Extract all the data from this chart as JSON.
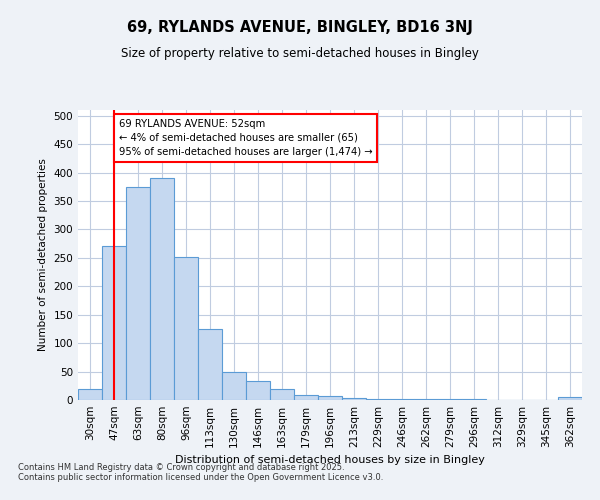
{
  "title": "69, RYLANDS AVENUE, BINGLEY, BD16 3NJ",
  "subtitle": "Size of property relative to semi-detached houses in Bingley",
  "xlabel": "Distribution of semi-detached houses by size in Bingley",
  "ylabel": "Number of semi-detached properties",
  "bins": [
    "30sqm",
    "47sqm",
    "63sqm",
    "80sqm",
    "96sqm",
    "113sqm",
    "130sqm",
    "146sqm",
    "163sqm",
    "179sqm",
    "196sqm",
    "213sqm",
    "229sqm",
    "246sqm",
    "262sqm",
    "279sqm",
    "296sqm",
    "312sqm",
    "329sqm",
    "345sqm",
    "362sqm"
  ],
  "bar_values": [
    20,
    270,
    375,
    390,
    252,
    125,
    50,
    33,
    20,
    9,
    7,
    4,
    2,
    2,
    1,
    1,
    1,
    0,
    0,
    0,
    5
  ],
  "bar_color": "#c5d8f0",
  "bar_edge_color": "#5b9bd5",
  "vline_x": 1,
  "vline_color": "red",
  "annotation_text": "69 RYLANDS AVENUE: 52sqm\n← 4% of semi-detached houses are smaller (65)\n95% of semi-detached houses are larger (1,474) →",
  "annotation_box_color": "white",
  "annotation_box_edge": "red",
  "footer": "Contains HM Land Registry data © Crown copyright and database right 2025.\nContains public sector information licensed under the Open Government Licence v3.0.",
  "ylim": [
    0,
    510
  ],
  "yticks": [
    0,
    50,
    100,
    150,
    200,
    250,
    300,
    350,
    400,
    450,
    500
  ],
  "bg_color": "#eef2f7",
  "plot_bg": "white",
  "grid_color": "#c0cce0"
}
